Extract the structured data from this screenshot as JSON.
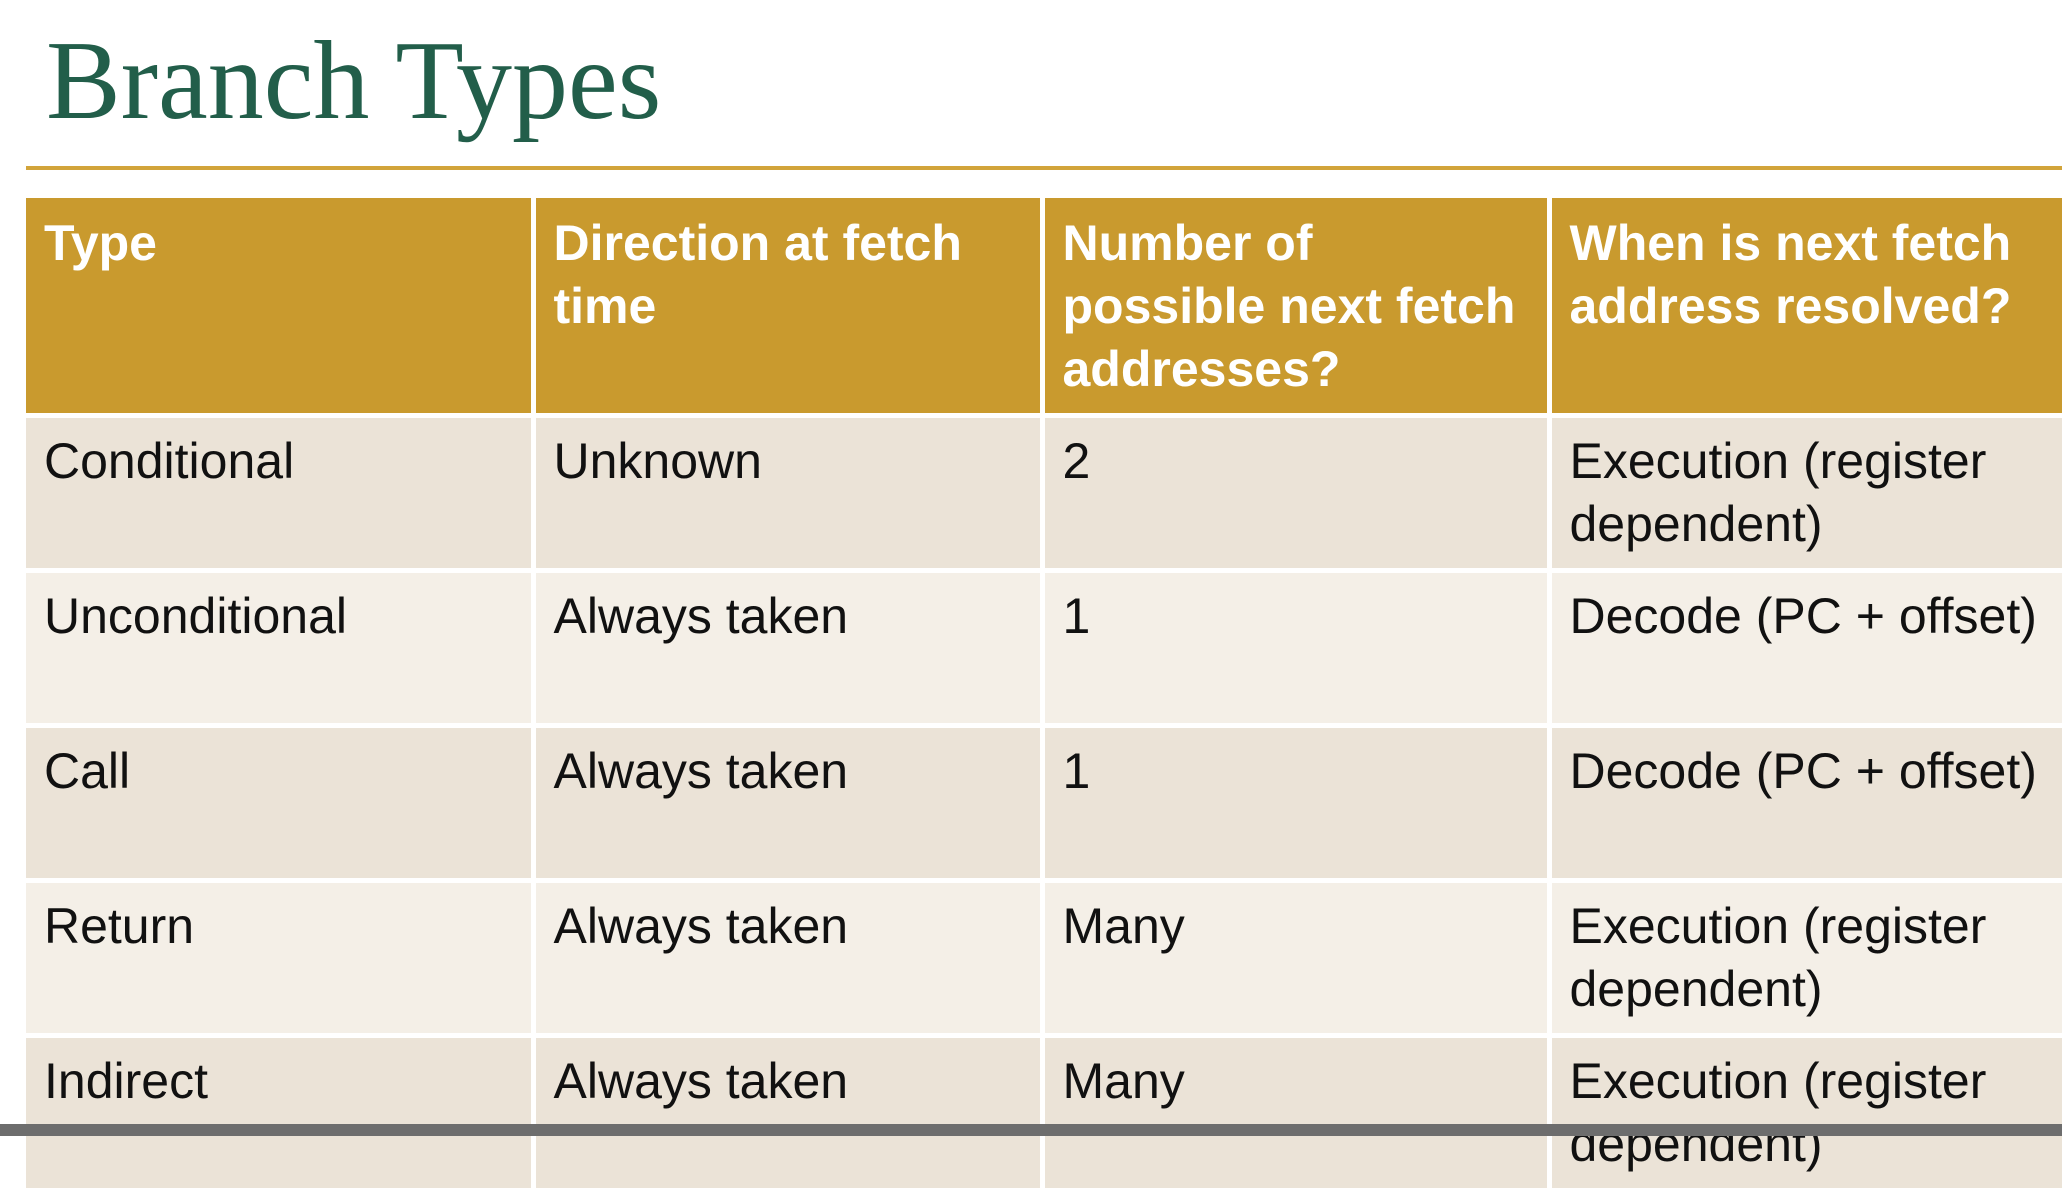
{
  "header": {
    "title": "Branch Types"
  },
  "table": {
    "columns": [
      "Type",
      "Direction at fetch time",
      "Number of possible next fetch addresses?",
      "When is next fetch address resolved?"
    ],
    "rows": [
      [
        "Conditional",
        "Unknown",
        "2",
        "Execution (register dependent)"
      ],
      [
        "Unconditional",
        "Always taken",
        "1",
        "Decode (PC + offset)"
      ],
      [
        "Call",
        "Always taken",
        "1",
        "Decode (PC + offset)"
      ],
      [
        "Return",
        "Always taken",
        "Many",
        "Execution (register dependent)"
      ],
      [
        "Indirect",
        "Always taken",
        "Many",
        "Execution (register dependent)"
      ]
    ]
  }
}
